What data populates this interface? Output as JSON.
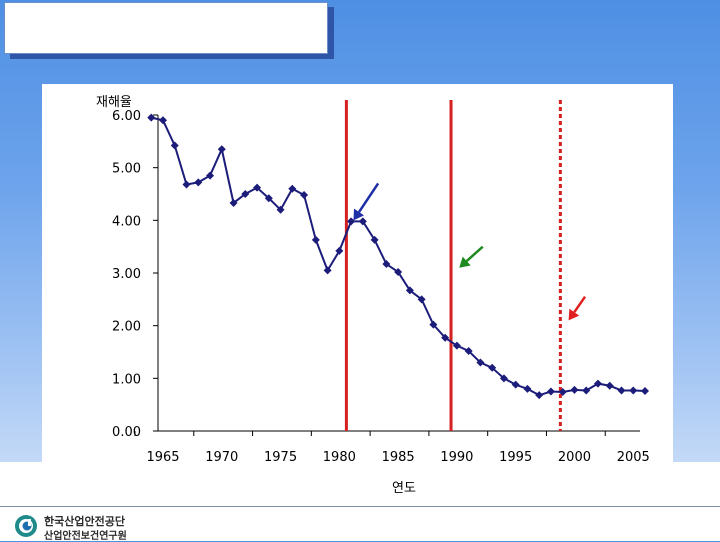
{
  "footer": {
    "org_name": "한국산업안전공단",
    "org_sub": "산업안전보건연구원"
  },
  "chart_data": {
    "type": "line",
    "ylabel": "재해율",
    "xlabel": "연도",
    "ylim": [
      0,
      6
    ],
    "xlim": [
      1965,
      2006
    ],
    "yticks": [
      0,
      1,
      2,
      3,
      4,
      5,
      6
    ],
    "ytick_labels": [
      "0.00",
      "1.00",
      "2.00",
      "3.00",
      "4.00",
      "5.00",
      "6.00"
    ],
    "xticks": [
      1965,
      1970,
      1975,
      1980,
      1985,
      1990,
      1995,
      2000,
      2005
    ],
    "grid": false,
    "series_color": "#1c1c7a",
    "x": [
      1964,
      1965,
      1966,
      1967,
      1968,
      1969,
      1970,
      1971,
      1972,
      1973,
      1974,
      1975,
      1976,
      1977,
      1978,
      1979,
      1980,
      1981,
      1982,
      1983,
      1984,
      1985,
      1986,
      1987,
      1988,
      1989,
      1990,
      1991,
      1992,
      1993,
      1994,
      1995,
      1996,
      1997,
      1998,
      1999,
      2000,
      2001,
      2002,
      2003,
      2004,
      2005,
      2006
    ],
    "y": [
      5.95,
      5.9,
      5.42,
      4.68,
      4.72,
      4.85,
      5.35,
      4.33,
      4.5,
      4.62,
      4.42,
      4.2,
      4.6,
      4.48,
      3.63,
      3.05,
      3.42,
      3.98,
      3.98,
      3.63,
      3.17,
      3.02,
      2.67,
      2.5,
      2.02,
      1.77,
      1.62,
      1.52,
      1.3,
      1.2,
      1.0,
      0.88,
      0.8,
      0.68,
      0.75,
      0.74,
      0.78,
      0.77,
      0.9,
      0.86,
      0.77,
      0.77,
      0.76
    ],
    "reference_lines": [
      {
        "x": 1980.6,
        "style": "solid",
        "color": "#d42020"
      },
      {
        "x": 1989.5,
        "style": "solid",
        "color": "#d42020"
      },
      {
        "x": 1998.8,
        "style": "dotted",
        "color": "#d42020"
      }
    ],
    "arrows": [
      {
        "color": "#1f2fa8",
        "tip_x": 1981.2,
        "tip_y": 4.0,
        "tail_x": 1983.3,
        "tail_y": 4.7
      },
      {
        "color": "#1f8a1f",
        "tip_x": 1990.2,
        "tip_y": 3.1,
        "tail_x": 1992.2,
        "tail_y": 3.5
      },
      {
        "color": "#e02020",
        "tip_x": 1999.5,
        "tip_y": 2.1,
        "tail_x": 2000.9,
        "tail_y": 2.55
      }
    ]
  }
}
